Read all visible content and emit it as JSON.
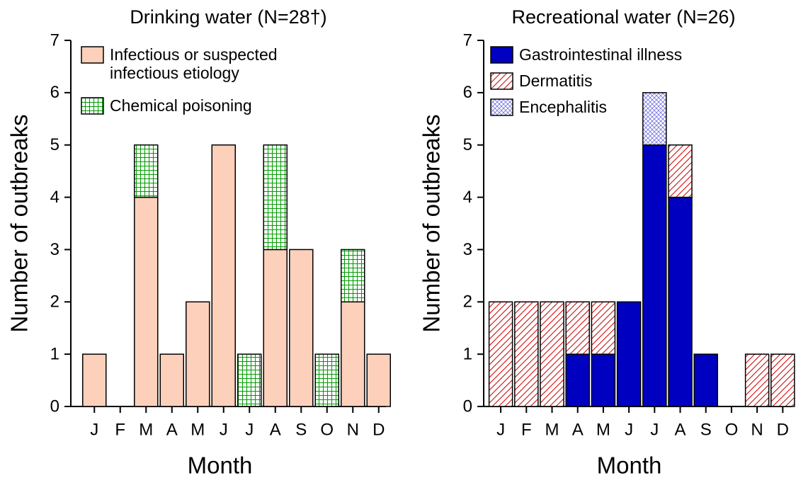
{
  "chart_data": [
    {
      "type": "stacked_bar",
      "title": "Drinking water (N=28†)",
      "xlabel": "Month",
      "ylabel": "Number of outbreaks",
      "categories": [
        "J",
        "F",
        "M",
        "A",
        "M",
        "J",
        "J",
        "A",
        "S",
        "O",
        "N",
        "D"
      ],
      "series": [
        {
          "name": "Infectious or suspected infectious etiology",
          "color": "#fcd0bb",
          "hatch": "none",
          "values": [
            1,
            0,
            4,
            1,
            2,
            5,
            0,
            3,
            3,
            0,
            2,
            1
          ]
        },
        {
          "name": "Chemical poisoning",
          "color": "#009a00",
          "hatch": "grid",
          "values": [
            0,
            0,
            1,
            0,
            0,
            0,
            1,
            2,
            0,
            1,
            1,
            0
          ]
        }
      ],
      "ylim": [
        0,
        7
      ],
      "yticks": [
        0,
        1,
        2,
        3,
        4,
        5,
        6,
        7
      ]
    },
    {
      "type": "stacked_bar",
      "title": "Recreational water (N=26)",
      "xlabel": "Month",
      "ylabel": "Number of outbreaks",
      "categories": [
        "J",
        "F",
        "M",
        "A",
        "M",
        "J",
        "J",
        "A",
        "S",
        "O",
        "N",
        "D"
      ],
      "series": [
        {
          "name": "Gastrointestinal illness",
          "color": "#0000c0",
          "hatch": "none",
          "values": [
            0,
            0,
            0,
            1,
            1,
            2,
            5,
            4,
            1,
            0,
            0,
            0
          ]
        },
        {
          "name": "Dermatitis",
          "color": "#cc0000",
          "hatch": "diagonal",
          "values": [
            2,
            2,
            2,
            1,
            1,
            0,
            0,
            1,
            0,
            0,
            1,
            1
          ]
        },
        {
          "name": "Encephalitis",
          "color": "#7070e0",
          "hatch": "crosshatch",
          "values": [
            0,
            0,
            0,
            0,
            0,
            0,
            1,
            0,
            0,
            0,
            0,
            0
          ]
        }
      ],
      "ylim": [
        0,
        7
      ],
      "yticks": [
        0,
        1,
        2,
        3,
        4,
        5,
        6,
        7
      ]
    }
  ]
}
